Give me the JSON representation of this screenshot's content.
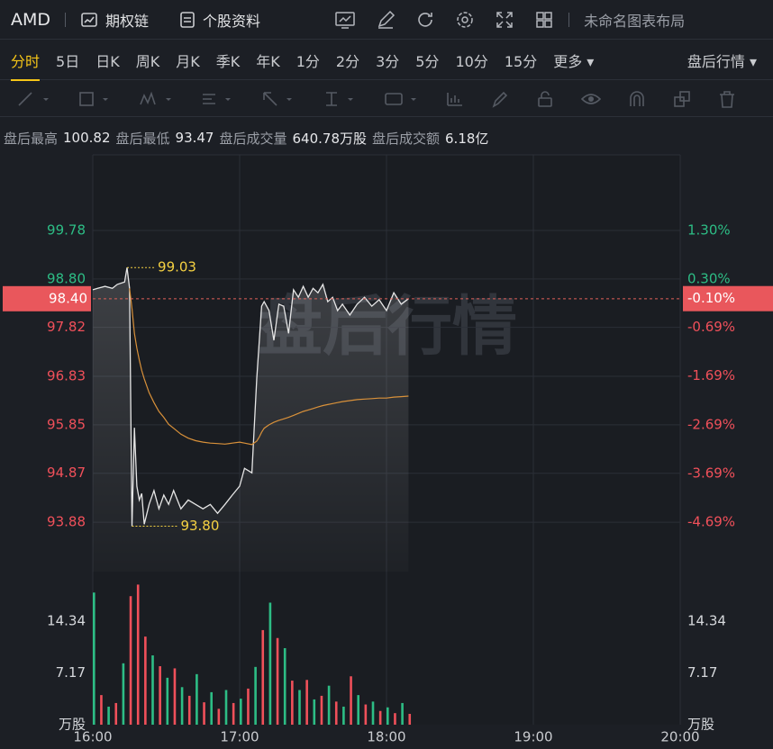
{
  "toolbar": {
    "symbol": "AMD",
    "links": [
      "期权链",
      "个股资料"
    ],
    "layout_name": "未命名图表布局"
  },
  "tabs": [
    "分时",
    "5日",
    "日K",
    "周K",
    "月K",
    "季K",
    "年K",
    "1分",
    "2分",
    "3分",
    "5分",
    "10分",
    "15分",
    "更多"
  ],
  "session": "盘后行情",
  "stats": [
    {
      "label": "盘后最高",
      "value": "100.82"
    },
    {
      "label": "盘后最低",
      "value": "93.47"
    },
    {
      "label": "盘后成交量",
      "value": "640.78万股"
    },
    {
      "label": "盘后成交额",
      "value": "6.18亿"
    }
  ],
  "chart_data": [
    {
      "type": "line",
      "watermark": "盘后行情",
      "x": [
        "16:00",
        "16:02",
        "16:05",
        "16:08",
        "16:10",
        "16:13",
        "16:14",
        "16:15",
        "16:16",
        "16:17",
        "16:18",
        "16:19",
        "16:20",
        "16:21",
        "16:23",
        "16:25",
        "16:27",
        "16:29",
        "16:31",
        "16:33",
        "16:36",
        "16:39",
        "16:42",
        "16:45",
        "16:48",
        "16:51",
        "16:54",
        "16:57",
        "17:00",
        "17:02",
        "17:05",
        "17:07",
        "17:08",
        "17:09",
        "17:10",
        "17:12",
        "17:14",
        "17:16",
        "17:18",
        "17:20",
        "17:22",
        "17:24",
        "17:26",
        "17:28",
        "17:30",
        "17:32",
        "17:34",
        "17:36",
        "17:38",
        "17:40",
        "17:42",
        "17:45",
        "17:48",
        "17:51",
        "17:54",
        "17:57",
        "18:00",
        "18:03",
        "18:06",
        "18:09"
      ],
      "series": [
        {
          "color": "#e6e6e6",
          "values": [
            98.58,
            98.61,
            98.65,
            98.61,
            98.69,
            98.74,
            99.03,
            98.61,
            93.8,
            95.79,
            94.61,
            94.33,
            94.46,
            93.84,
            94.24,
            94.52,
            94.15,
            94.43,
            94.24,
            94.52,
            94.15,
            94.33,
            94.24,
            94.15,
            94.24,
            94.06,
            94.24,
            94.43,
            94.61,
            94.97,
            94.88,
            96.79,
            97.52,
            98.25,
            98.34,
            98.16,
            97.56,
            98.29,
            98.25,
            97.7,
            98.58,
            98.43,
            98.65,
            98.43,
            98.61,
            98.52,
            98.69,
            98.34,
            98.43,
            98.16,
            98.29,
            98.07,
            98.29,
            98.43,
            98.25,
            98.38,
            98.16,
            98.52,
            98.29,
            98.4
          ]
        },
        {
          "color": "#d9913a",
          "values": [
            null,
            null,
            null,
            null,
            null,
            null,
            null,
            98.61,
            98.2,
            97.7,
            97.4,
            97.16,
            96.95,
            96.78,
            96.5,
            96.3,
            96.12,
            96.0,
            95.86,
            95.78,
            95.66,
            95.58,
            95.53,
            95.5,
            95.48,
            95.47,
            95.46,
            95.48,
            95.5,
            95.48,
            95.45,
            95.52,
            95.6,
            95.7,
            95.78,
            95.85,
            95.9,
            95.94,
            95.97,
            96.0,
            96.04,
            96.08,
            96.12,
            96.15,
            96.18,
            96.21,
            96.24,
            96.26,
            96.28,
            96.3,
            96.32,
            96.34,
            96.36,
            96.37,
            96.38,
            96.39,
            96.39,
            96.41,
            96.42,
            96.43
          ]
        }
      ],
      "xlim": [
        "16:00",
        "20:00"
      ],
      "xticks": [
        "16:00",
        "17:00",
        "18:00",
        "19:00",
        "20:00"
      ],
      "ylim": [
        92.88,
        101.31
      ],
      "yticks": [
        99.78,
        {
          "value": 98.8,
          "label": "98.80"
        },
        97.82,
        96.83,
        95.85,
        94.87,
        93.88
      ],
      "y2lim": [
        -5.707,
        2.853
      ],
      "y2ticks": [
        {
          "value": 1.3,
          "label": "1.30%"
        },
        {
          "value": 0.3,
          "label": "0.30%"
        },
        {
          "value": -0.69,
          "label": "-0.69%"
        },
        {
          "value": -1.69,
          "label": "-1.69%"
        },
        {
          "value": -2.69,
          "label": "-2.69%"
        },
        {
          "value": -3.69,
          "label": "-3.69%"
        },
        {
          "value": -4.69,
          "label": "-4.69%"
        }
      ],
      "last": {
        "value": 98.4,
        "label": "98.40"
      },
      "last_change": {
        "value": -0.1,
        "label": "-0.10%"
      },
      "annotations": [
        {
          "x": "16:14",
          "value": 99.03
        },
        {
          "x": "16:16",
          "value": {
            "value": 93.8,
            "label": "93.80"
          }
        }
      ],
      "grid": true
    },
    {
      "type": "bar",
      "unit": "万股",
      "x": [
        "16:00",
        "16:03",
        "16:06",
        "16:09",
        "16:12",
        "16:15",
        "16:18",
        "16:21",
        "16:24",
        "16:27",
        "16:30",
        "16:33",
        "16:36",
        "16:39",
        "16:42",
        "16:45",
        "16:48",
        "16:51",
        "16:54",
        "16:57",
        "17:00",
        "17:03",
        "17:06",
        "17:09",
        "17:12",
        "17:15",
        "17:18",
        "17:21",
        "17:24",
        "17:27",
        "17:30",
        "17:33",
        "17:36",
        "17:39",
        "17:42",
        "17:45",
        "17:48",
        "17:51",
        "17:54",
        "17:57",
        "18:00",
        "18:03",
        "18:06",
        "18:09"
      ],
      "values": [
        18.3,
        4.1,
        2.5,
        3.0,
        8.5,
        17.8,
        19.4,
        12.2,
        9.6,
        8.1,
        6.5,
        7.8,
        5.2,
        4.0,
        7.0,
        3.1,
        4.5,
        2.2,
        4.8,
        3.0,
        3.6,
        5.0,
        8.0,
        13.1,
        16.9,
        12.0,
        10.6,
        6.1,
        4.8,
        6.2,
        3.5,
        4.0,
        5.4,
        3.2,
        2.5,
        6.7,
        4.1,
        2.8,
        3.2,
        1.9,
        2.4,
        1.6,
        3.0,
        1.5
      ],
      "colors": [
        "#2dbd85",
        "#f0505a",
        "#2dbd85",
        "#f0505a",
        "#2dbd85",
        "#f0505a",
        "#f0505a",
        "#f0505a",
        "#2dbd85",
        "#f0505a",
        "#2dbd85",
        "#f0505a",
        "#2dbd85",
        "#f0505a",
        "#2dbd85",
        "#f0505a",
        "#2dbd85",
        "#f0505a",
        "#2dbd85",
        "#f0505a",
        "#2dbd85",
        "#f0505a",
        "#2dbd85",
        "#f0505a",
        "#2dbd85",
        "#f0505a",
        "#2dbd85",
        "#f0505a",
        "#2dbd85",
        "#f0505a",
        "#2dbd85",
        "#f0505a",
        "#2dbd85",
        "#f0505a",
        "#2dbd85",
        "#f0505a",
        "#2dbd85",
        "#f0505a",
        "#2dbd85",
        "#f0505a",
        "#2dbd85",
        "#f0505a",
        "#2dbd85",
        "#f0505a"
      ],
      "xlim": [
        "16:00",
        "20:00"
      ],
      "ylim": [
        0,
        20.57
      ],
      "yticks": [
        14.34,
        7.17
      ]
    }
  ]
}
